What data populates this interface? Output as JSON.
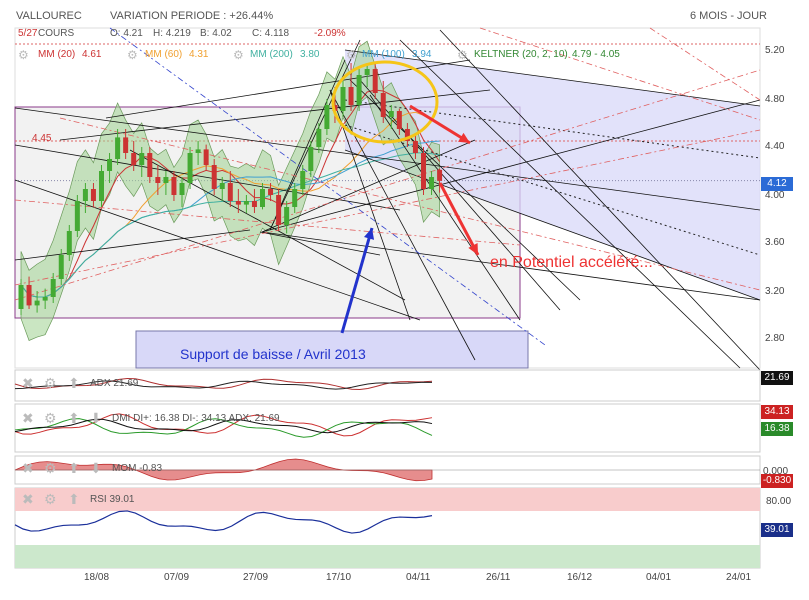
{
  "header": {
    "symbol": "VALLOUREC",
    "variation": "VARIATION PERIODE : +26.44%",
    "period": "6 MOIS - JOUR"
  },
  "legend": {
    "open_label": "O: 4.21",
    "cours": "COURS",
    "high_label": "H: 4.219",
    "low_label": "B: 4.02",
    "close_label": "C: 4.118",
    "change": "-2.09%",
    "date": "5/27",
    "mm20": "MM (20)",
    "mm20_val": "4.61",
    "mm60": "MM (60)",
    "mm60_val": "4.31",
    "mm200": "MM (200)",
    "mm200_val": "3.80",
    "mm100": "MM (100)",
    "mm100_val": "3.94",
    "keltner": "KELTNER (20, 2, 10)",
    "keltner_val": "4.79 - 4.05"
  },
  "price_level_box": "4.45",
  "annotations": {
    "support": "Support de baisse / Avril 2013",
    "potentiel": "en Potentiel accéléré..."
  },
  "y_axis": [
    "5.20",
    "4.80",
    "4.40",
    "4.12",
    "4.00",
    "3.60",
    "3.20",
    "2.80"
  ],
  "current_price": "4.12",
  "x_axis": [
    "18/08",
    "07/09",
    "27/09",
    "17/10",
    "04/11",
    "26/11",
    "16/12",
    "04/01",
    "24/01"
  ],
  "adx_panel": {
    "label": "ADX 21.69",
    "value": "21.69"
  },
  "dmi_panel": {
    "label": "DMI DI+: 16.38 DI-: 34.13 ADX: 21.69",
    "di_minus": "34.13",
    "di_plus": "16.38"
  },
  "mom_panel": {
    "label": "MOM -0.83",
    "zero": "0.000",
    "value": "-0.830"
  },
  "rsi_panel": {
    "label": "RSI 39.01",
    "level80": "80.00",
    "value": "39.01"
  },
  "colors": {
    "up": "#44aa33",
    "down": "#cc3333",
    "bg_channel": "#d8d8f8",
    "grey_zone": "#e8e8e8",
    "band": "#9fd18f",
    "mm20": "#cc3333",
    "mm60": "#f0a030",
    "mm100": "#40a0d0",
    "mm200": "#40b0a0",
    "arrow_red": "#ee3333",
    "arrow_blue": "#2233cc",
    "circle": "#f5c518"
  },
  "chart_data": {
    "type": "candlestick",
    "y_axis_range": [
      2.7,
      5.35
    ],
    "candles": [
      {
        "o": 3.05,
        "h": 3.3,
        "l": 3.0,
        "c": 3.25
      },
      {
        "o": 3.25,
        "h": 3.32,
        "l": 3.05,
        "c": 3.08
      },
      {
        "o": 3.08,
        "h": 3.2,
        "l": 3.02,
        "c": 3.12
      },
      {
        "o": 3.12,
        "h": 3.22,
        "l": 3.05,
        "c": 3.15
      },
      {
        "o": 3.15,
        "h": 3.35,
        "l": 3.1,
        "c": 3.3
      },
      {
        "o": 3.3,
        "h": 3.55,
        "l": 3.25,
        "c": 3.5
      },
      {
        "o": 3.5,
        "h": 3.75,
        "l": 3.45,
        "c": 3.7
      },
      {
        "o": 3.7,
        "h": 4.0,
        "l": 3.65,
        "c": 3.95
      },
      {
        "o": 3.95,
        "h": 4.1,
        "l": 3.85,
        "c": 4.05
      },
      {
        "o": 4.05,
        "h": 4.1,
        "l": 3.9,
        "c": 3.95
      },
      {
        "o": 3.95,
        "h": 4.25,
        "l": 3.9,
        "c": 4.2
      },
      {
        "o": 4.2,
        "h": 4.35,
        "l": 4.1,
        "c": 4.3
      },
      {
        "o": 4.3,
        "h": 4.55,
        "l": 4.25,
        "c": 4.48
      },
      {
        "o": 4.48,
        "h": 4.55,
        "l": 4.3,
        "c": 4.35
      },
      {
        "o": 4.35,
        "h": 4.45,
        "l": 4.2,
        "c": 4.25
      },
      {
        "o": 4.25,
        "h": 4.4,
        "l": 4.15,
        "c": 4.35
      },
      {
        "o": 4.35,
        "h": 4.4,
        "l": 4.1,
        "c": 4.15
      },
      {
        "o": 4.15,
        "h": 4.25,
        "l": 4.0,
        "c": 4.1
      },
      {
        "o": 4.1,
        "h": 4.2,
        "l": 4.0,
        "c": 4.15
      },
      {
        "o": 4.15,
        "h": 4.2,
        "l": 3.95,
        "c": 4.0
      },
      {
        "o": 4.0,
        "h": 4.15,
        "l": 3.9,
        "c": 4.1
      },
      {
        "o": 4.1,
        "h": 4.4,
        "l": 4.05,
        "c": 4.35
      },
      {
        "o": 4.35,
        "h": 4.45,
        "l": 4.25,
        "c": 4.38
      },
      {
        "o": 4.38,
        "h": 4.42,
        "l": 4.2,
        "c": 4.25
      },
      {
        "o": 4.25,
        "h": 4.3,
        "l": 4.0,
        "c": 4.05
      },
      {
        "o": 4.05,
        "h": 4.15,
        "l": 3.95,
        "c": 4.1
      },
      {
        "o": 4.1,
        "h": 4.2,
        "l": 3.9,
        "c": 3.95
      },
      {
        "o": 3.95,
        "h": 4.05,
        "l": 3.85,
        "c": 3.92
      },
      {
        "o": 3.92,
        "h": 4.0,
        "l": 3.85,
        "c": 3.95
      },
      {
        "o": 3.95,
        "h": 4.05,
        "l": 3.85,
        "c": 3.9
      },
      {
        "o": 3.9,
        "h": 4.1,
        "l": 3.88,
        "c": 4.05
      },
      {
        "o": 4.05,
        "h": 4.1,
        "l": 3.95,
        "c": 4.0
      },
      {
        "o": 4.0,
        "h": 4.05,
        "l": 3.7,
        "c": 3.75
      },
      {
        "o": 3.75,
        "h": 3.95,
        "l": 3.68,
        "c": 3.9
      },
      {
        "o": 3.9,
        "h": 4.1,
        "l": 3.85,
        "c": 4.05
      },
      {
        "o": 4.05,
        "h": 4.25,
        "l": 4.0,
        "c": 4.2
      },
      {
        "o": 4.2,
        "h": 4.45,
        "l": 4.15,
        "c": 4.4
      },
      {
        "o": 4.4,
        "h": 4.6,
        "l": 4.35,
        "c": 4.55
      },
      {
        "o": 4.55,
        "h": 4.8,
        "l": 4.5,
        "c": 4.75
      },
      {
        "o": 4.75,
        "h": 4.9,
        "l": 4.6,
        "c": 4.7
      },
      {
        "o": 4.7,
        "h": 4.95,
        "l": 4.65,
        "c": 4.9
      },
      {
        "o": 4.9,
        "h": 5.1,
        "l": 4.7,
        "c": 4.75
      },
      {
        "o": 4.75,
        "h": 5.05,
        "l": 4.7,
        "c": 5.0
      },
      {
        "o": 5.0,
        "h": 5.1,
        "l": 4.9,
        "c": 5.05
      },
      {
        "o": 5.05,
        "h": 5.1,
        "l": 4.8,
        "c": 4.85
      },
      {
        "o": 4.85,
        "h": 4.95,
        "l": 4.6,
        "c": 4.65
      },
      {
        "o": 4.65,
        "h": 4.75,
        "l": 4.55,
        "c": 4.7
      },
      {
        "o": 4.7,
        "h": 4.72,
        "l": 4.5,
        "c": 4.55
      },
      {
        "o": 4.55,
        "h": 4.6,
        "l": 4.4,
        "c": 4.45
      },
      {
        "o": 4.45,
        "h": 4.5,
        "l": 4.3,
        "c": 4.35
      },
      {
        "o": 4.35,
        "h": 4.4,
        "l": 4.0,
        "c": 4.05
      },
      {
        "o": 4.05,
        "h": 4.2,
        "l": 4.0,
        "c": 4.15
      },
      {
        "o": 4.21,
        "h": 4.219,
        "l": 4.02,
        "c": 4.118
      }
    ]
  }
}
